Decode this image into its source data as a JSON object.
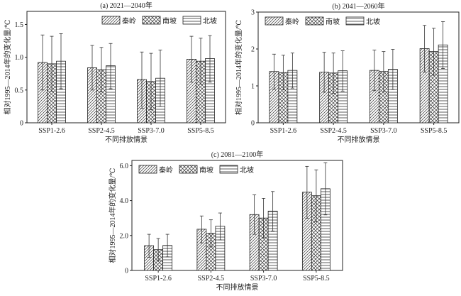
{
  "chart_data": [
    {
      "type": "bar",
      "title": "(a) 2021—2040年",
      "xlabel": "不同排放情景",
      "ylabel": "相对1995—2014年的变化量/℃",
      "categories": [
        "SSP1-2.6",
        "SSP2-4.5",
        "SSP3-7.0",
        "SSP5-8.5"
      ],
      "ylim": [
        0,
        1.7
      ],
      "yticks": [
        0,
        0.5,
        1.0,
        1.5
      ],
      "ytick_labels": [
        "0",
        "0.5",
        "1.0",
        "1.5"
      ],
      "legend_position": "top-right",
      "series": [
        {
          "name": "秦岭",
          "pattern": "diagonal",
          "values": [
            0.92,
            0.84,
            0.66,
            0.97
          ],
          "err_high": [
            1.34,
            1.18,
            1.08,
            1.32
          ],
          "err_low": [
            0.5,
            0.5,
            0.22,
            0.62
          ]
        },
        {
          "name": "南坡",
          "pattern": "crosshatch",
          "values": [
            0.9,
            0.81,
            0.63,
            0.94
          ],
          "err_high": [
            1.32,
            1.15,
            1.06,
            1.29
          ],
          "err_low": [
            0.48,
            0.47,
            0.2,
            0.59
          ]
        },
        {
          "name": "北坡",
          "pattern": "horizontal",
          "values": [
            0.94,
            0.87,
            0.68,
            0.98
          ],
          "err_high": [
            1.36,
            1.21,
            1.11,
            1.33
          ],
          "err_low": [
            0.52,
            0.52,
            0.25,
            0.62
          ]
        }
      ]
    },
    {
      "type": "bar",
      "title": "(b) 2041—2060年",
      "xlabel": "不同排放情景",
      "ylabel": "相对1995—2014年的变化量/℃",
      "categories": [
        "SSP1-2.6",
        "SSP2-4.5",
        "SSP3-7.0",
        "SSP5-8.5"
      ],
      "ylim": [
        0,
        3
      ],
      "yticks": [
        0,
        1,
        2,
        3
      ],
      "ytick_labels": [
        "0",
        "1",
        "2",
        "3"
      ],
      "legend_position": "top-left",
      "series": [
        {
          "name": "秦岭",
          "pattern": "diagonal",
          "values": [
            1.39,
            1.37,
            1.42,
            2.01
          ],
          "err_high": [
            1.86,
            1.91,
            1.97,
            2.64
          ],
          "err_low": [
            0.91,
            0.83,
            0.87,
            1.37
          ]
        },
        {
          "name": "南坡",
          "pattern": "crosshatch",
          "values": [
            1.36,
            1.35,
            1.39,
            1.93
          ],
          "err_high": [
            1.83,
            1.89,
            1.93,
            2.56
          ],
          "err_low": [
            0.89,
            0.8,
            0.84,
            1.29
          ]
        },
        {
          "name": "北坡",
          "pattern": "horizontal",
          "values": [
            1.42,
            1.41,
            1.45,
            2.11
          ],
          "err_high": [
            1.89,
            1.95,
            1.99,
            2.74
          ],
          "err_low": [
            0.94,
            0.86,
            0.9,
            1.47
          ]
        }
      ]
    },
    {
      "type": "bar",
      "title": "(c) 2081—2100年",
      "xlabel": "不同排放情景",
      "ylabel": "相对1995—2014年的变化量/℃",
      "categories": [
        "SSP1-2.6",
        "SSP2-4.5",
        "SSP3-7.0",
        "SSP5-8.5"
      ],
      "ylim": [
        0,
        6.3
      ],
      "yticks": [
        0,
        2,
        4,
        6
      ],
      "ytick_labels": [
        "0",
        "2.0",
        "4.0",
        "6.0"
      ],
      "legend_position": "top-left",
      "series": [
        {
          "name": "秦岭",
          "pattern": "diagonal",
          "values": [
            1.42,
            2.36,
            3.2,
            4.48
          ],
          "err_high": [
            2.07,
            3.12,
            4.33,
            5.96
          ],
          "err_low": [
            0.75,
            1.58,
            2.07,
            2.98
          ]
        },
        {
          "name": "南坡",
          "pattern": "crosshatch",
          "values": [
            1.19,
            2.13,
            3.0,
            4.28
          ],
          "err_high": [
            1.83,
            2.9,
            4.13,
            5.76
          ],
          "err_low": [
            0.55,
            1.35,
            1.87,
            2.78
          ]
        },
        {
          "name": "北坡",
          "pattern": "horizontal",
          "values": [
            1.43,
            2.53,
            3.4,
            4.68
          ],
          "err_high": [
            2.07,
            3.29,
            4.52,
            6.17
          ],
          "err_low": [
            0.78,
            1.75,
            2.26,
            3.18
          ]
        }
      ]
    }
  ]
}
